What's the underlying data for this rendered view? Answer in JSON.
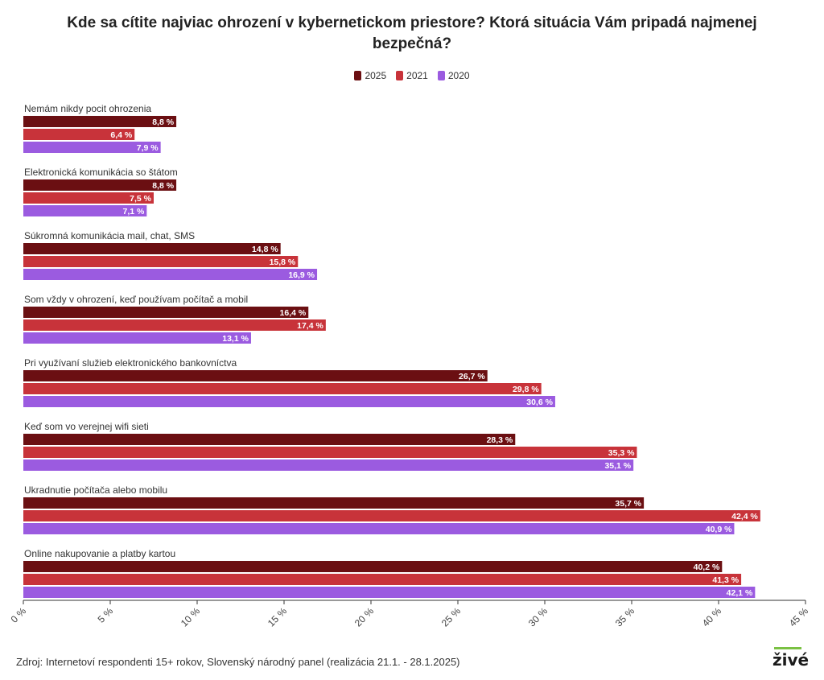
{
  "title": "Kde sa cítite najviac ohrození v kybernetickom priestore? Ktorá situácia Vám pripadá najmenej bezpečná?",
  "legend": [
    {
      "label": "2025",
      "color": "#6b0f12"
    },
    {
      "label": "2021",
      "color": "#c8333a"
    },
    {
      "label": "2020",
      "color": "#9b5be0"
    }
  ],
  "source": "Zdroj: Internetoví respondenti 15+ rokov, Slovenský národný panel (realizácia 21.1. - 28.1.2025)",
  "logo": "živé",
  "chart_data": {
    "type": "bar",
    "orientation": "horizontal",
    "title": "Kde sa cítite najviac ohrození v kybernetickom priestore? Ktorá situácia Vám pripadá najmenej bezpečná?",
    "categories": [
      "Nemám nikdy pocit ohrozenia",
      "Elektronická komunikácia so štátom",
      "Súkromná komunikácia mail, chat, SMS",
      "Som vždy v ohrození, keď používam počítač a mobil",
      "Pri využívaní služieb elektronického bankovníctva",
      "Keď som vo verejnej wifi sieti",
      "Ukradnutie počítača alebo mobilu",
      "Online nakupovanie a platby kartou"
    ],
    "series": [
      {
        "name": "2025",
        "values": [
          8.8,
          8.8,
          14.8,
          16.4,
          26.7,
          28.3,
          35.7,
          40.2
        ],
        "labels": [
          "8,8 %",
          "8,8 %",
          "14,8 %",
          "16,4 %",
          "26,7 %",
          "28,3 %",
          "35,7 %",
          "40,2 %"
        ]
      },
      {
        "name": "2021",
        "values": [
          6.4,
          7.5,
          15.8,
          17.4,
          29.8,
          35.3,
          42.4,
          41.3
        ],
        "labels": [
          "6,4 %",
          "7,5 %",
          "15,8 %",
          "17,4 %",
          "29,8 %",
          "35,3 %",
          "42,4 %",
          "41,3 %"
        ]
      },
      {
        "name": "2020",
        "values": [
          7.9,
          7.1,
          16.9,
          13.1,
          30.6,
          35.1,
          40.9,
          42.1
        ],
        "labels": [
          "7,9 %",
          "7,1 %",
          "16,9 %",
          "13,1 %",
          "30,6 %",
          "35,1 %",
          "40,9 %",
          "42,1 %"
        ]
      }
    ],
    "xlim": [
      0,
      45
    ],
    "xticks": [
      0,
      5,
      10,
      15,
      20,
      25,
      30,
      35,
      40,
      45
    ],
    "xtick_labels": [
      "0 %",
      "5 %",
      "10 %",
      "15 %",
      "20 %",
      "25 %",
      "30 %",
      "35 %",
      "40 %",
      "45 %"
    ],
    "legend_position": "top-center",
    "grid": false
  }
}
